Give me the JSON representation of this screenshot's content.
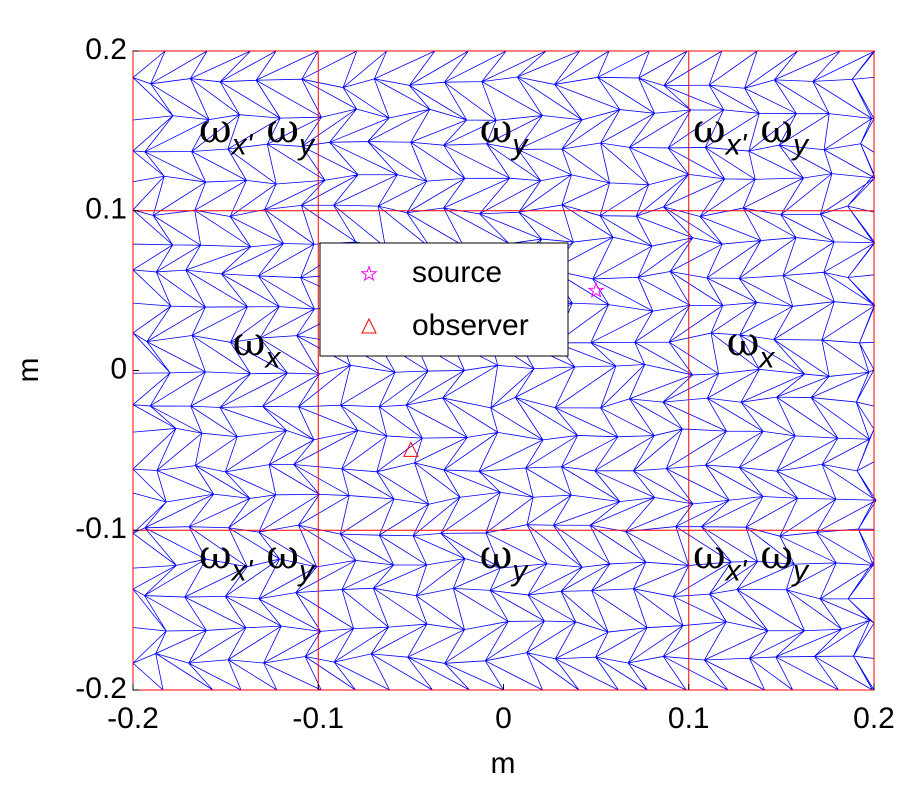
{
  "chart_data": {
    "type": "scatter",
    "xlabel": "m",
    "ylabel": "m",
    "xlim": [
      -0.2,
      0.2
    ],
    "ylim": [
      -0.2,
      0.2
    ],
    "xticks": [
      -0.2,
      -0.1,
      0,
      0.1,
      0.2
    ],
    "yticks": [
      -0.2,
      -0.1,
      0,
      0.1,
      0.2
    ],
    "region_lines": [
      -0.1,
      0.1
    ],
    "region_line_color": "#ff0000",
    "mesh_color": "#0000ff",
    "series": [
      {
        "name": "source",
        "color": "#ff00ff",
        "marker": "star",
        "x": [
          0.05
        ],
        "values": [
          0.05
        ]
      },
      {
        "name": "observer",
        "color": "#ff0000",
        "marker": "triangle",
        "x": [
          -0.05
        ],
        "values": [
          -0.05
        ]
      }
    ],
    "regions": [
      [
        {
          "base": "ω",
          "sub": "x'"
        },
        {
          "base": "ω",
          "sub": "y"
        }
      ],
      [
        {
          "base": "ω",
          "sub": "y"
        }
      ],
      [
        {
          "base": "ω",
          "sub": "x'"
        },
        {
          "base": "ω",
          "sub": "y"
        }
      ],
      [
        {
          "base": "ω",
          "sub": "x"
        }
      ],
      null,
      [
        {
          "base": "ω",
          "sub": "x"
        }
      ],
      [
        {
          "base": "ω",
          "sub": "x'"
        },
        {
          "base": "ω",
          "sub": "y"
        }
      ],
      [
        {
          "base": "ω",
          "sub": "y"
        }
      ],
      [
        {
          "base": "ω",
          "sub": "x'"
        },
        {
          "base": "ω",
          "sub": "y"
        }
      ]
    ]
  }
}
